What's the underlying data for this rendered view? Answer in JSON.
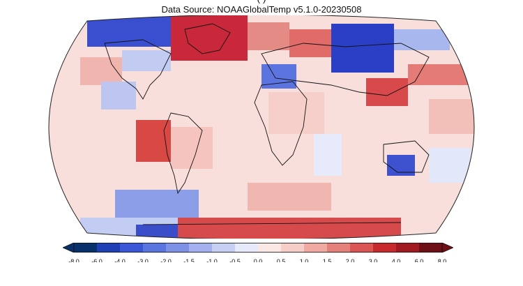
{
  "header": {
    "title_partial": "(                                          )",
    "subtitle": "Data Source: NOAAGlobalTemp v5.1.0-20230508"
  },
  "colorbar": {
    "labels": [
      "-8.0",
      "-6.0",
      "-4.0",
      "-3.0",
      "-2.0",
      "-1.5",
      "-1.0",
      "-0.5",
      "0.0",
      "0.5",
      "1.0",
      "1.5",
      "2.0",
      "3.0",
      "4.0",
      "6.0",
      "8.0"
    ],
    "colors": [
      "#08306b",
      "#1f3fb5",
      "#3b56d6",
      "#5a74e0",
      "#7d91e6",
      "#a3b2ee",
      "#c6d0f5",
      "#e6eafa",
      "#fbe7e4",
      "#f6cdc7",
      "#f0aaa1",
      "#e6807a",
      "#da5553",
      "#c7292e",
      "#a11a22",
      "#6e0f16"
    ]
  },
  "map": {
    "projection": "Robinson",
    "ocean_color": "#f7dcd8",
    "cool_anomaly_color": "#3040c8",
    "warm_anomaly_color": "#c2222b"
  }
}
